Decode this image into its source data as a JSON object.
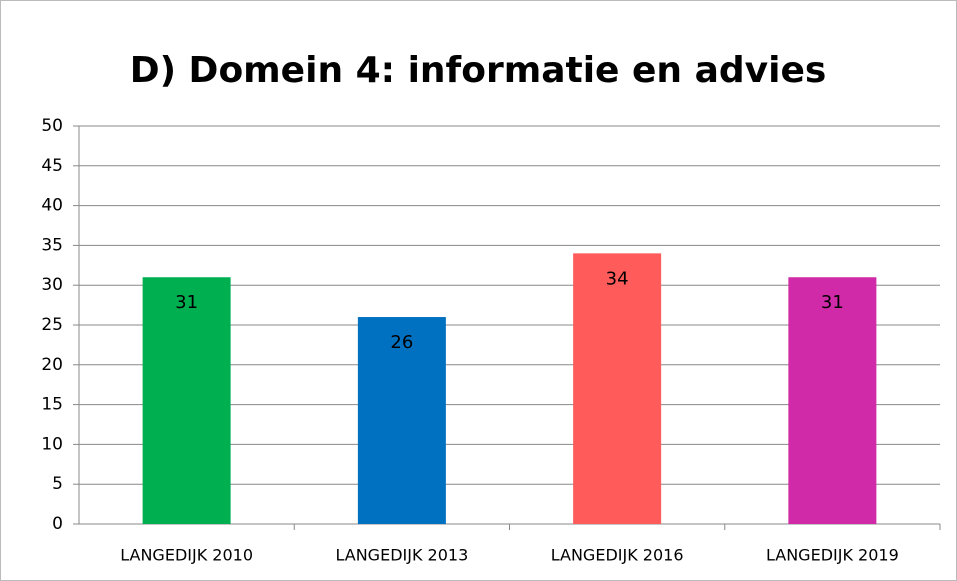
{
  "chart_data": {
    "type": "bar",
    "title": "D) Domein 4: informatie en advies",
    "categories": [
      "LANGEDIJK 2010",
      "LANGEDIJK 2013",
      "LANGEDIJK 2016",
      "LANGEDIJK 2019"
    ],
    "values": [
      31,
      26,
      34,
      31
    ],
    "colors": [
      "#00b050",
      "#0070c0",
      "#ff5b5b",
      "#d02aa8"
    ],
    "ylim": [
      0,
      50
    ],
    "yticks": [
      0,
      5,
      10,
      15,
      20,
      25,
      30,
      35,
      40,
      45,
      50
    ],
    "grid": true
  }
}
